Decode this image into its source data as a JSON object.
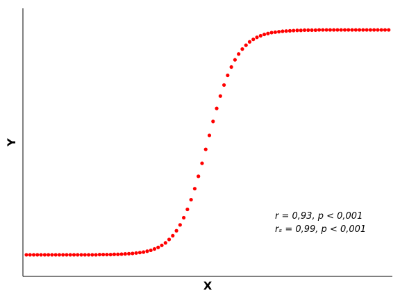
{
  "chart_data": {
    "type": "scatter",
    "x_label": "X",
    "y_label": "Y",
    "annotations": [
      "r = 0,93, p < 0,001",
      "rₛ = 0,99, p < 0,001"
    ],
    "color": "#ff0000",
    "xlim": [
      -0.95,
      100.0
    ],
    "ylim": [
      -0.096,
      1.096
    ],
    "x": [
      0,
      1,
      2,
      3,
      4,
      5,
      6,
      7,
      8,
      9,
      10,
      11,
      12,
      13,
      14,
      15,
      16,
      17,
      18,
      19,
      20,
      21,
      22,
      23,
      24,
      25,
      26,
      27,
      28,
      29,
      30,
      31,
      32,
      33,
      34,
      35,
      36,
      37,
      38,
      39,
      40,
      41,
      42,
      43,
      44,
      45,
      46,
      47,
      48,
      49,
      50,
      51,
      52,
      53,
      54,
      55,
      56,
      57,
      58,
      59,
      60,
      61,
      62,
      63,
      64,
      65,
      66,
      67,
      68,
      69,
      70,
      71,
      72,
      73,
      74,
      75,
      76,
      77,
      78,
      79,
      80,
      81,
      82,
      83,
      84,
      85,
      86,
      87,
      88,
      89,
      90,
      91,
      92,
      93,
      94,
      95,
      96,
      97,
      98,
      99
    ],
    "values": [
      0,
      0,
      0,
      0,
      0,
      0,
      0,
      0,
      0,
      0,
      0,
      0,
      0,
      0,
      0,
      0,
      0,
      0,
      0,
      0,
      0.001,
      0.001,
      0.001,
      0.001,
      0.002,
      0.002,
      0.003,
      0.004,
      0.005,
      0.006,
      0.008,
      0.01,
      0.012,
      0.016,
      0.02,
      0.026,
      0.033,
      0.042,
      0.053,
      0.068,
      0.085,
      0.107,
      0.133,
      0.165,
      0.202,
      0.245,
      0.294,
      0.349,
      0.407,
      0.469,
      0.531,
      0.593,
      0.651,
      0.706,
      0.755,
      0.798,
      0.835,
      0.867,
      0.893,
      0.915,
      0.932,
      0.947,
      0.958,
      0.967,
      0.974,
      0.98,
      0.984,
      0.988,
      0.99,
      0.992,
      0.994,
      0.995,
      0.996,
      0.997,
      0.998,
      0.998,
      0.999,
      0.999,
      0.999,
      0.999,
      1,
      1,
      1,
      1,
      1,
      1,
      1,
      1,
      1,
      1,
      1,
      1,
      1,
      1,
      1,
      1,
      1,
      1,
      1,
      1
    ]
  }
}
